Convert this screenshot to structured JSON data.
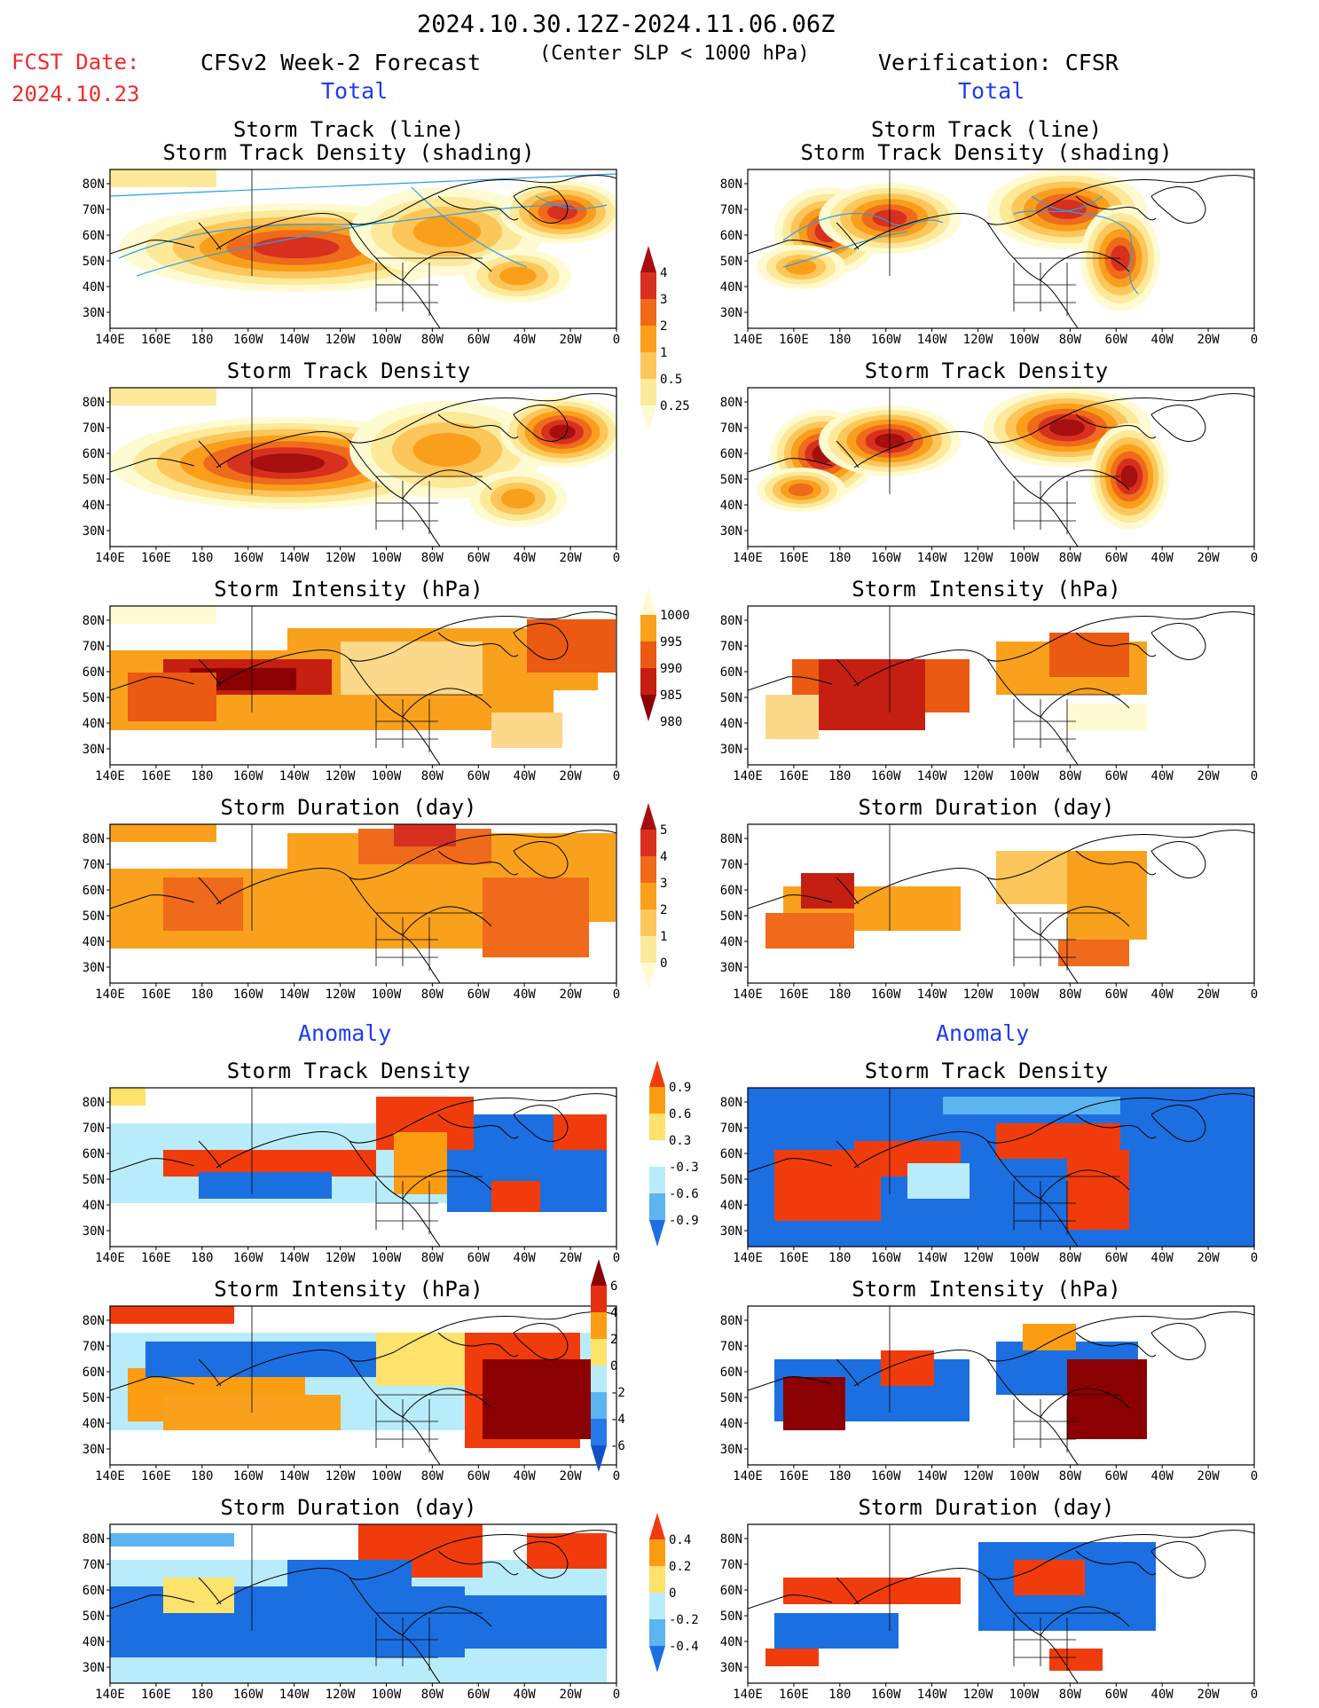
{
  "header": {
    "fcst_label": "FCST Date:",
    "fcst_date": "2024.10.23",
    "period": "2024.10.30.12Z-2024.11.06.06Z",
    "criterion": "(Center SLP < 1000 hPa)",
    "left_title": "CFSv2 Week-2 Forecast",
    "right_title": "Verification: CFSR",
    "left_section_total": "Total",
    "right_section_total": "Total",
    "left_section_anomaly": "Anomaly",
    "right_section_anomaly": "Anomaly"
  },
  "panel_titles": {
    "track_line": "Storm Track (line)",
    "track_shading": "Storm Track Density (shading)",
    "density": "Storm Track Density",
    "intensity": "Storm Intensity (hPa)",
    "duration": "Storm Duration (day)"
  },
  "axes": {
    "lon_ticks": [
      "140E",
      "160E",
      "180",
      "160W",
      "140W",
      "120W",
      "100W",
      "80W",
      "60W",
      "40W",
      "20W",
      "0"
    ],
    "lat_ticks": [
      "80N",
      "70N",
      "60N",
      "50N",
      "40N",
      "30N"
    ]
  },
  "colorbars": {
    "density_total": {
      "labels": [
        "4",
        "3",
        "2",
        "1",
        "0.5",
        "0.25"
      ],
      "colors": [
        "#a50f0f",
        "#d7301f",
        "#ef6a1b",
        "#f99f1c",
        "#fcc65a",
        "#fde99a",
        "#fefbd2"
      ]
    },
    "intensity_total": {
      "labels": [
        "1000",
        "995",
        "990",
        "985",
        "980"
      ],
      "colors": [
        "#fefbd2",
        "#f9a11c",
        "#ea5a12",
        "#c51f12",
        "#8b0000"
      ]
    },
    "duration_total": {
      "labels": [
        "5",
        "4",
        "3",
        "2",
        "1",
        "0"
      ],
      "colors": [
        "#a50f0f",
        "#d7301f",
        "#ef6a1b",
        "#f99f1c",
        "#fcc65a",
        "#fde99a",
        "#fefbd2"
      ]
    },
    "density_anom": {
      "labels": [
        "0.9",
        "0.6",
        "0.3",
        "-0.3",
        "-0.6",
        "-0.9"
      ],
      "colors": [
        "#f03c0c",
        "#fb9d12",
        "#fde26b",
        "#ffffff",
        "#b9ecfa",
        "#5bb5f0",
        "#1c6fe0"
      ]
    },
    "intensity_anom": {
      "labels": [
        "6",
        "4",
        "2",
        "0",
        "-2",
        "-4",
        "-6"
      ],
      "colors": [
        "#8b0000",
        "#e23010",
        "#fb9d12",
        "#fde26b",
        "#b9ecfa",
        "#5bb5f0",
        "#2778e8",
        "#1250c8"
      ]
    },
    "duration_anom": {
      "labels": [
        "0.4",
        "0.2",
        "0",
        "-0.2",
        "-0.4"
      ],
      "colors": [
        "#f03c0c",
        "#fb9d12",
        "#fde26b",
        "#b9ecfa",
        "#5bb5f0",
        "#1c6fe0"
      ]
    }
  }
}
